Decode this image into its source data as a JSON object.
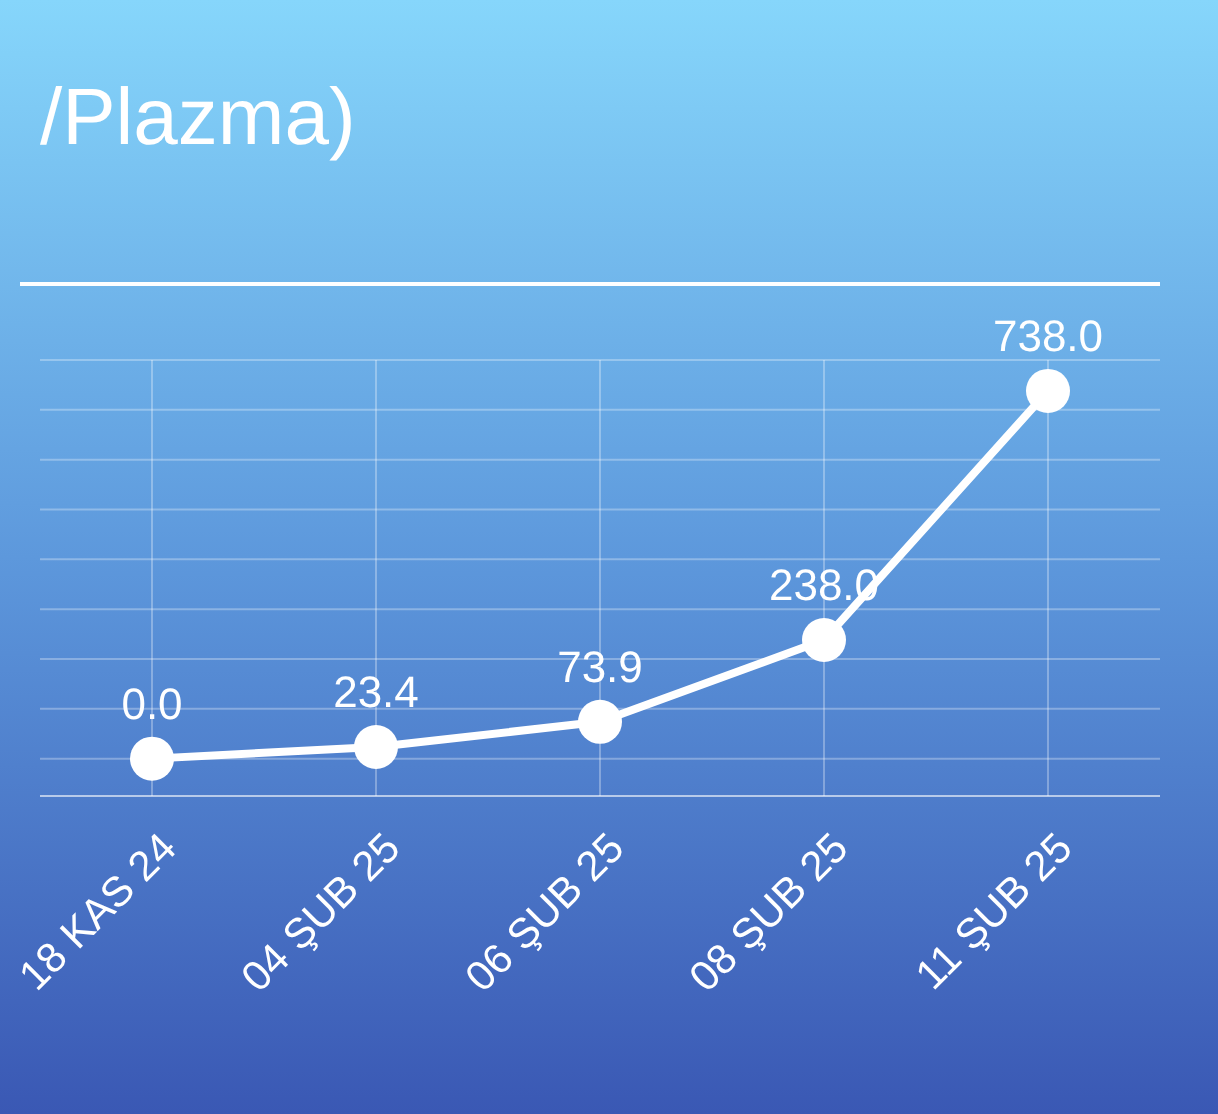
{
  "chart_data": {
    "type": "line",
    "title": "/Plazma)",
    "categories": [
      "18 KAS 24",
      "04 ŞUB 25",
      "06 ŞUB 25",
      "08 ŞUB 25",
      "11 ŞUB 25"
    ],
    "series": [
      {
        "color": "#ffffff",
        "values": [
          0.0,
          23.4,
          73.9,
          238.0,
          738.0
        ],
        "value_labels": [
          "0.0",
          "23.4",
          "73.9",
          "238.0",
          "738.0"
        ]
      }
    ],
    "ylim": [
      -75,
      800
    ],
    "yticks": [
      {
        "value": 0,
        "label": null
      },
      {
        "value": 100,
        "label": null
      },
      {
        "value": 200,
        "label": null
      },
      {
        "value": 300,
        "label": null
      },
      {
        "value": 400,
        "label": null
      },
      {
        "value": 500,
        "label": null
      },
      {
        "value": 600,
        "label": null
      },
      {
        "value": 700,
        "label": null
      },
      {
        "value": 800,
        "label": null
      }
    ],
    "tick_labels": "x",
    "grid": true,
    "marker": "circle",
    "line_style": "solid"
  }
}
